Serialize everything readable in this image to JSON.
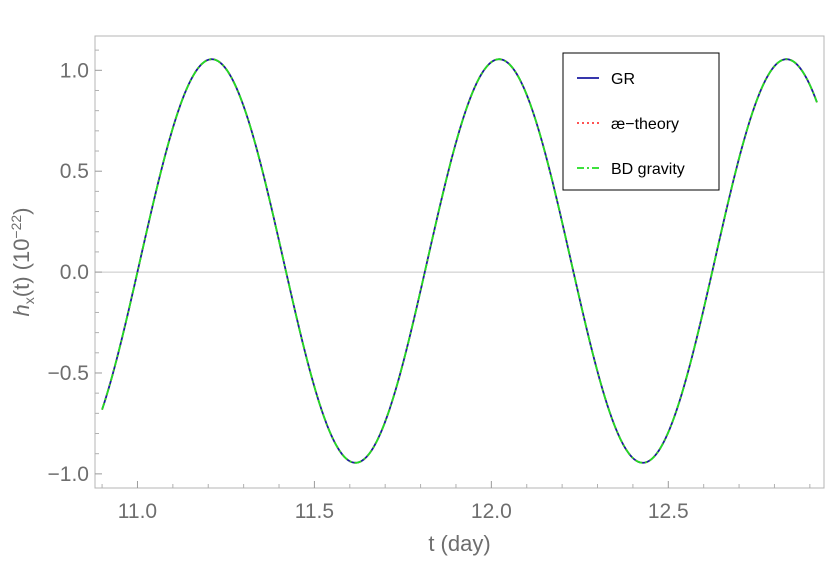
{
  "chart_data": {
    "type": "line",
    "title": "",
    "xlabel": "t (day)",
    "ylabel": {
      "base": "h",
      "sub": "x",
      "rest": "(t) (10",
      "sup": "−22",
      "close": ")"
    },
    "xlim": [
      10.88,
      12.94
    ],
    "ylim": [
      -1.07,
      1.17
    ],
    "xticks": [
      11.0,
      11.5,
      12.0,
      12.5
    ],
    "xtick_labels": [
      "11.0",
      "11.5",
      "12.0",
      "12.5"
    ],
    "yticks": [
      -1.0,
      -0.5,
      0.0,
      0.5,
      1.0
    ],
    "ytick_labels": [
      "−1.0",
      "−0.5",
      "0.0",
      "0.5",
      "1.0"
    ],
    "grid": false,
    "zero_line": true,
    "legend_position": "top-right",
    "curve": {
      "t_start": 10.9,
      "t_end": 12.92,
      "period_days": 0.812,
      "offset": 0.055,
      "amplitude": 1.0,
      "peak_at_day": 11.21,
      "peak_value": 1.055,
      "trough_value": -0.945,
      "start_value": -0.64,
      "end_value": 0.82
    },
    "series": [
      {
        "name": "GR",
        "color": "#1a1aa0",
        "style": "solid"
      },
      {
        "name": "æ−theory",
        "color": "#ff3b3b",
        "style": "dotted"
      },
      {
        "name": "BD gravity",
        "color": "#22dd22",
        "style": "dashdot"
      }
    ]
  }
}
